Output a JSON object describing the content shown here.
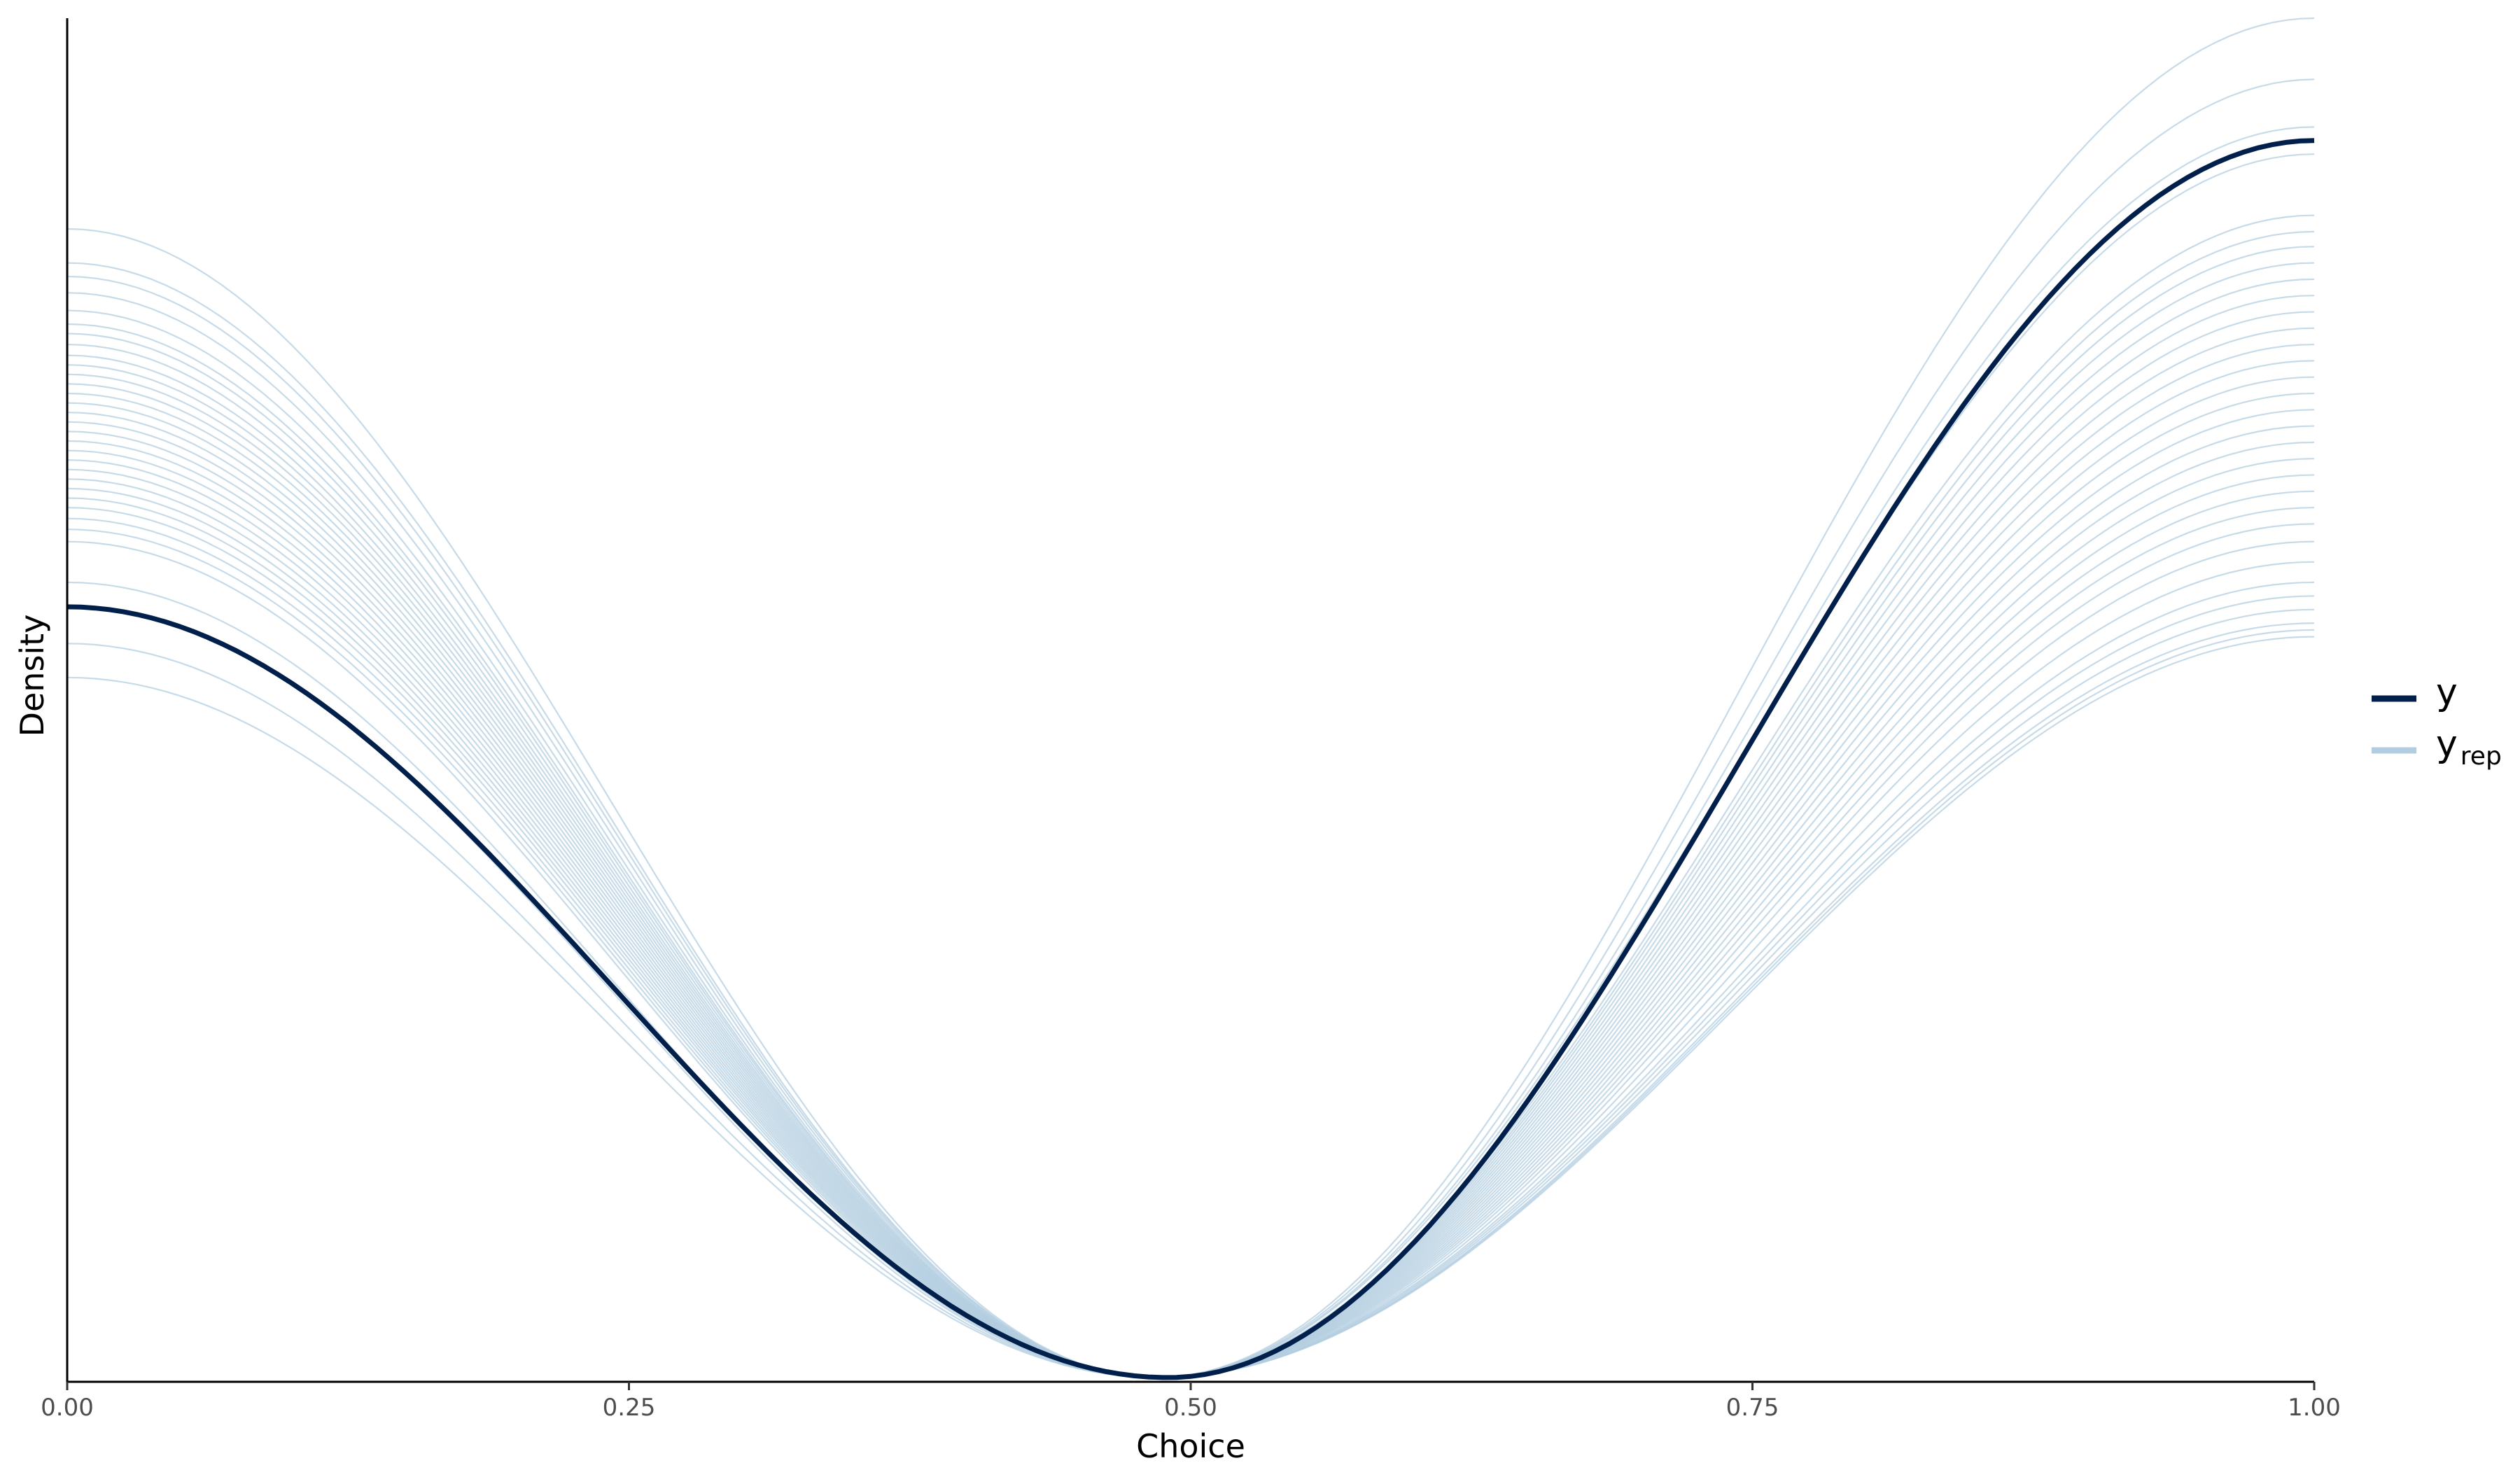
{
  "chart_data": {
    "type": "line",
    "title": "",
    "xlabel": "Choice",
    "ylabel": "Density",
    "xlim": [
      0,
      1
    ],
    "ylim": [
      0,
      1
    ],
    "x_ticks": [
      0,
      0.25,
      0.5,
      0.75,
      1
    ],
    "x_tick_labels": [
      "0.00",
      "0.25",
      "0.50",
      "0.75",
      "1.00"
    ],
    "y_ticks_shown": false,
    "grid": false,
    "legend": {
      "position": "right",
      "entries": [
        {
          "label": "y",
          "subscript": "",
          "color": "#011f4b"
        },
        {
          "label": "y",
          "subscript": "rep",
          "color": "#b3cde0"
        }
      ]
    },
    "observed": {
      "name": "y",
      "color": "#011f4b",
      "start": 0.567,
      "end": 0.91,
      "min_x": 0.49
    },
    "replicates": {
      "name": "y_rep",
      "color": "#b3cde0",
      "start": [
        0.845,
        0.82,
        0.81,
        0.798,
        0.785,
        0.775,
        0.768,
        0.76,
        0.752,
        0.745,
        0.738,
        0.731,
        0.724,
        0.717,
        0.71,
        0.703,
        0.696,
        0.689,
        0.682,
        0.675,
        0.668,
        0.661,
        0.654,
        0.647,
        0.64,
        0.632,
        0.624,
        0.615,
        0.585,
        0.568,
        0.54,
        0.515
      ],
      "end": [
        1.0,
        0.955,
        0.92,
        0.9,
        0.855,
        0.843,
        0.832,
        0.82,
        0.808,
        0.796,
        0.784,
        0.772,
        0.76,
        0.748,
        0.736,
        0.724,
        0.712,
        0.7,
        0.688,
        0.676,
        0.664,
        0.652,
        0.64,
        0.628,
        0.615,
        0.6,
        0.585,
        0.575,
        0.565,
        0.555,
        0.55,
        0.545
      ],
      "min_x": 0.485
    }
  }
}
